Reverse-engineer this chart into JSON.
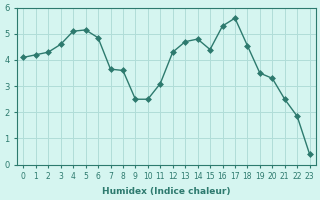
{
  "xlabel": "Humidex (Indice chaleur)",
  "x": [
    0,
    1,
    2,
    3,
    4,
    5,
    6,
    7,
    8,
    9,
    10,
    11,
    12,
    13,
    14,
    15,
    16,
    17,
    18,
    19,
    20,
    21,
    22,
    23
  ],
  "y": [
    4.1,
    4.2,
    4.3,
    4.6,
    5.1,
    5.15,
    4.85,
    3.65,
    3.6,
    2.5,
    2.5,
    3.1,
    4.3,
    4.7,
    4.8,
    4.4,
    5.3,
    5.6,
    4.55,
    3.5,
    3.3,
    2.5,
    1.85,
    0.4
  ],
  "line_color": "#2d7a6e",
  "marker": "D",
  "marker_size": 3,
  "bg_color": "#d5f5f0",
  "grid_color": "#b0ddd8",
  "ylim": [
    0,
    6
  ],
  "xlim": [
    -0.5,
    23.5
  ],
  "yticks": [
    0,
    1,
    2,
    3,
    4,
    5,
    6
  ],
  "xticks": [
    0,
    1,
    2,
    3,
    4,
    5,
    6,
    7,
    8,
    9,
    10,
    11,
    12,
    13,
    14,
    15,
    16,
    17,
    18,
    19,
    20,
    21,
    22,
    23
  ],
  "figsize": [
    3.2,
    2.0
  ],
  "dpi": 100
}
